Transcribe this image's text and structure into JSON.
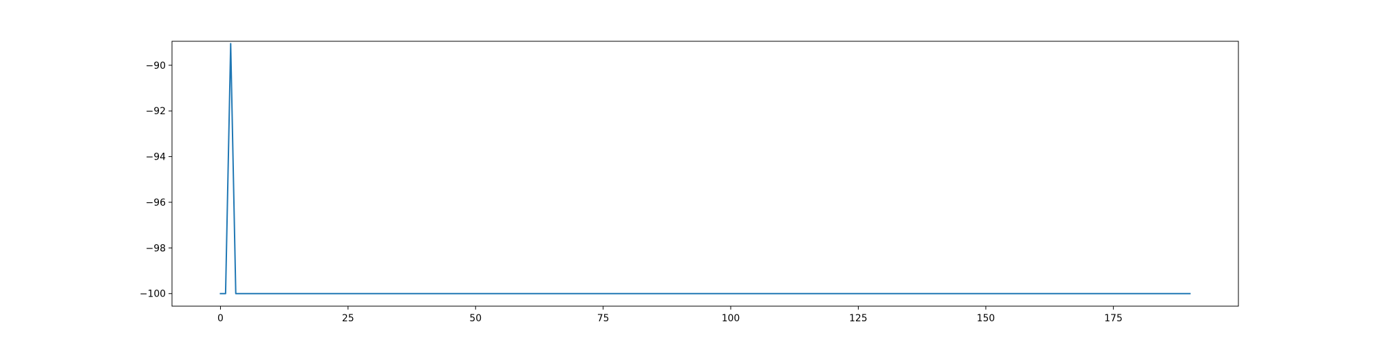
{
  "chart_data": {
    "type": "line",
    "title": "",
    "xlabel": "",
    "ylabel": "",
    "xlim": [
      -9.5,
      199.5
    ],
    "ylim": [
      -100.55,
      -88.95
    ],
    "grid": false,
    "x_ticks": [
      0,
      25,
      50,
      75,
      100,
      125,
      150,
      175
    ],
    "x_tick_labels": [
      "0",
      "25",
      "50",
      "75",
      "100",
      "125",
      "150",
      "175"
    ],
    "y_ticks": [
      -90,
      -92,
      -94,
      -96,
      -98,
      -100
    ],
    "y_tick_labels": [
      "−90",
      "−92",
      "−94",
      "−96",
      "−98",
      "−100"
    ],
    "series": [
      {
        "color": "#1f77b4",
        "points": [
          [
            0,
            -100
          ],
          [
            1,
            -100
          ],
          [
            2,
            -89.05
          ],
          [
            3,
            -100
          ],
          [
            190,
            -100
          ]
        ]
      }
    ]
  }
}
